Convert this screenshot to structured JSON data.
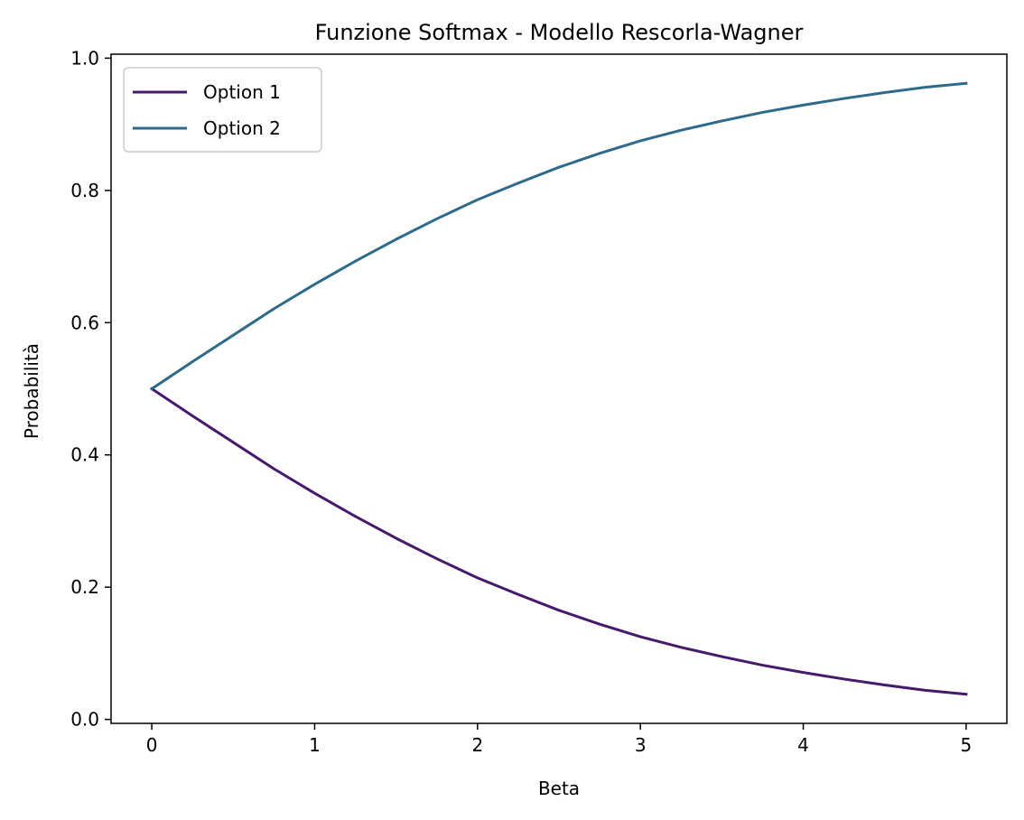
{
  "chart_data": {
    "type": "line",
    "title": "Funzione Softmax - Modello Rescorla-Wagner",
    "xlabel": "Beta",
    "ylabel": "Probabilità",
    "xlim": [
      -0.25,
      5.25
    ],
    "ylim": [
      -0.006,
      1.006
    ],
    "xticks": [
      0,
      1,
      2,
      3,
      4,
      5
    ],
    "yticks": [
      0.0,
      0.2,
      0.4,
      0.6,
      0.8,
      1.0
    ],
    "xtick_labels": [
      "0",
      "1",
      "2",
      "3",
      "4",
      "5"
    ],
    "ytick_labels": [
      "0.0",
      "0.2",
      "0.4",
      "0.6",
      "0.8",
      "1.0"
    ],
    "grid": false,
    "legend_position": "top-left",
    "x": [
      0,
      0.25,
      0.5,
      0.75,
      1,
      1.25,
      1.5,
      1.75,
      2,
      2.25,
      2.5,
      2.75,
      3,
      3.25,
      3.5,
      3.75,
      4,
      4.25,
      4.5,
      4.75,
      5
    ],
    "series": [
      {
        "name": "Option 1",
        "color": "#46196b",
        "values": [
          0.5,
          0.459,
          0.419,
          0.379,
          0.342,
          0.307,
          0.274,
          0.243,
          0.214,
          0.189,
          0.165,
          0.144,
          0.125,
          0.109,
          0.095,
          0.082,
          0.071,
          0.061,
          0.052,
          0.044,
          0.038
        ]
      },
      {
        "name": "Option 2",
        "color": "#2e6b8a",
        "values": [
          0.5,
          0.541,
          0.581,
          0.621,
          0.658,
          0.693,
          0.726,
          0.757,
          0.786,
          0.811,
          0.835,
          0.856,
          0.875,
          0.891,
          0.905,
          0.918,
          0.929,
          0.939,
          0.948,
          0.956,
          0.962
        ]
      }
    ]
  }
}
